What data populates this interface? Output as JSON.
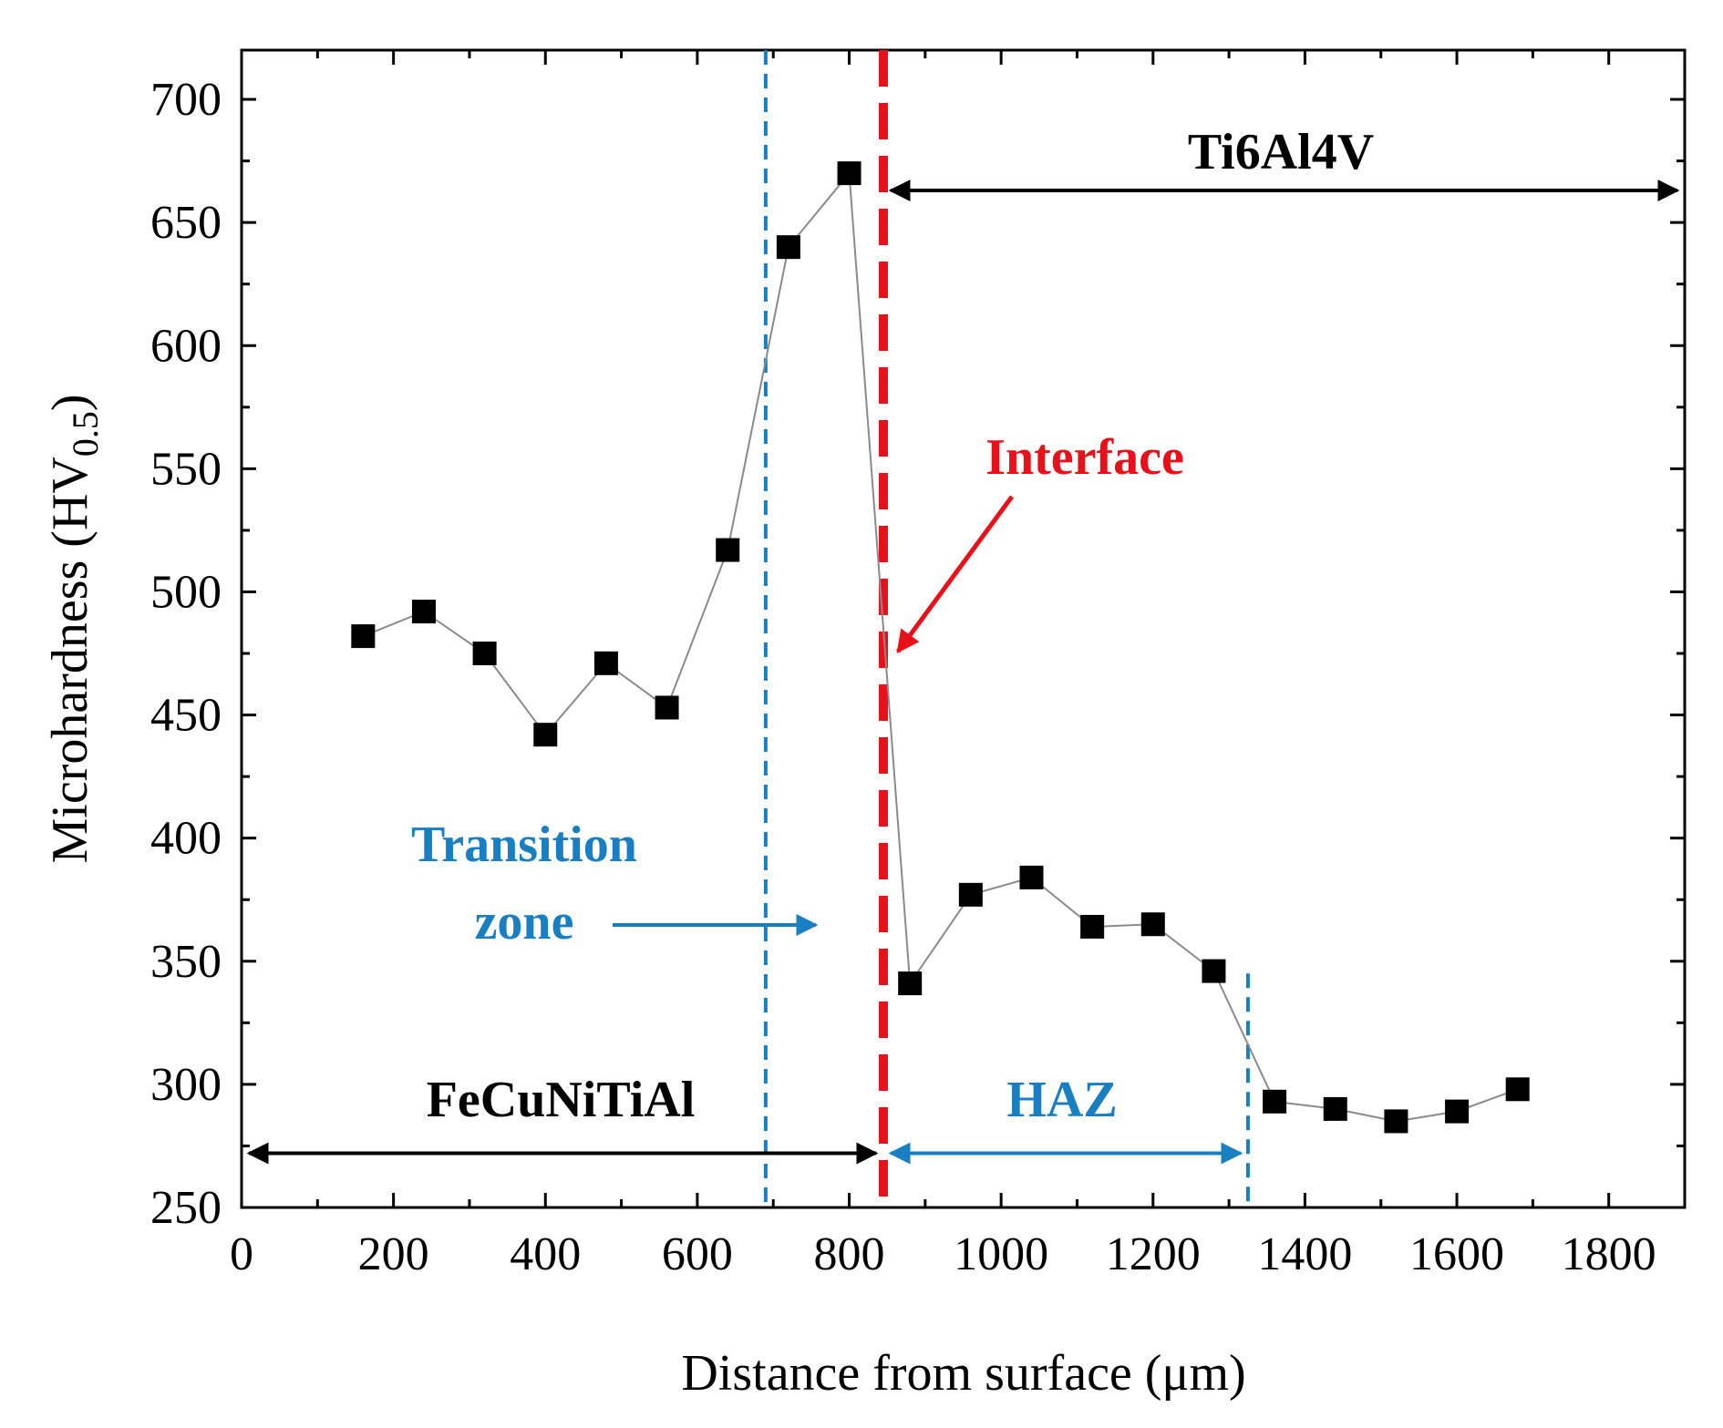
{
  "chart_data": {
    "type": "line",
    "xlabel": "Distance from surface (μm)",
    "ylabel_main": "Microhardness (HV",
    "ylabel_sub": "0.5",
    "ylabel_close": ")",
    "xlim": [
      0,
      1900
    ],
    "ylim": [
      250,
      720
    ],
    "x_ticks": [
      0,
      200,
      400,
      600,
      800,
      1000,
      1200,
      1400,
      1600,
      1800
    ],
    "y_ticks": [
      250,
      300,
      350,
      400,
      450,
      500,
      550,
      600,
      650,
      700
    ],
    "series": [
      {
        "marker": "square",
        "color": "#000000",
        "line_color": "#8a8a8a",
        "x": [
          160,
          240,
          320,
          400,
          480,
          560,
          640,
          720,
          800,
          880,
          960,
          1040,
          1120,
          1200,
          1280,
          1360,
          1440,
          1520,
          1600,
          1680
        ],
        "y": [
          482,
          492,
          475,
          442,
          471,
          453,
          517,
          640,
          670,
          341,
          377,
          384,
          364,
          365,
          346,
          293,
          290,
          285,
          289,
          298
        ]
      }
    ],
    "reference_lines": [
      {
        "x": 690,
        "color": "#1a7fc1",
        "style": "dashed",
        "y_from": 250,
        "y_to": 720
      },
      {
        "x": 845,
        "color": "#e8111a",
        "style": "dashed",
        "y_from": 250,
        "y_to": 720
      },
      {
        "x": 1325,
        "color": "#1a7fc1",
        "style": "dashed",
        "y_from": 250,
        "y_to": 345
      }
    ],
    "annotations": {
      "ti6al4v": {
        "text": "Ti6Al4V",
        "color": "#000000"
      },
      "interface": {
        "text": "Interface",
        "color": "#e8111a"
      },
      "transition_line1": {
        "text": "Transition",
        "color": "#1a7fc1"
      },
      "transition_line2": {
        "text": "zone",
        "color": "#1a7fc1"
      },
      "fecuniti": {
        "text": "FeCuNiTiAl",
        "color": "#000000"
      },
      "haz": {
        "text": "HAZ",
        "color": "#1a7fc1"
      }
    },
    "range_arrows": [
      {
        "name": "ti6al4v-range",
        "x_from": 845,
        "x_to": 1900,
        "y": 663,
        "color": "#000000"
      },
      {
        "name": "fecuniti-range",
        "x_from": 0,
        "x_to": 845,
        "y": 272,
        "color": "#000000"
      },
      {
        "name": "haz-range",
        "x_from": 845,
        "x_to": 1325,
        "y": 272,
        "color": "#1a7fc1"
      }
    ]
  }
}
